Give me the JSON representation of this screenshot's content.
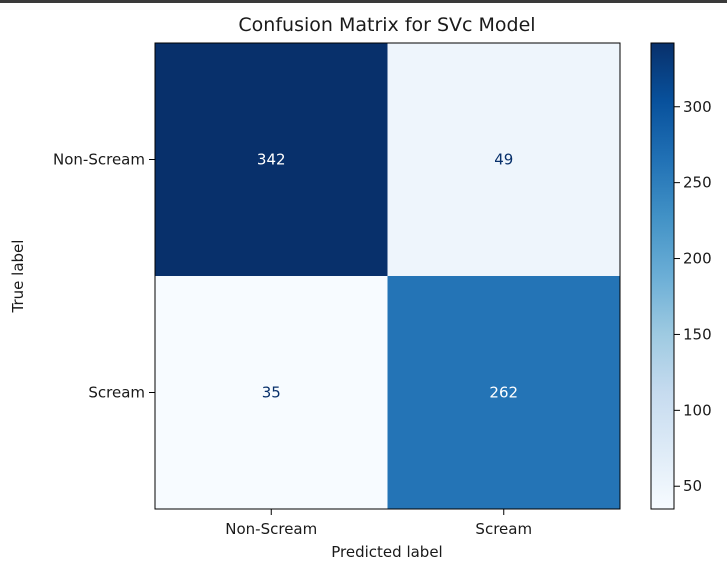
{
  "chart_data": {
    "type": "heatmap",
    "title": "Confusion Matrix for SVc Model",
    "xlabel": "Predicted label",
    "ylabel": "True label",
    "x_categories": [
      "Non-Scream",
      "Scream"
    ],
    "y_categories": [
      "Non-Scream",
      "Scream"
    ],
    "values": [
      [
        342,
        49
      ],
      [
        35,
        262
      ]
    ],
    "colormap": "Blues",
    "colorbar": {
      "range": [
        35,
        342
      ],
      "ticks": [
        50,
        100,
        150,
        200,
        250,
        300
      ]
    },
    "colors": {
      "cmap_stops": [
        "#f7fbff",
        "#deebf7",
        "#c6dbef",
        "#9ecae1",
        "#6baed6",
        "#4292c6",
        "#2171b5",
        "#08519c",
        "#08306b"
      ],
      "text_on_dark": "#ffffff",
      "text_on_light": "#08306b"
    }
  }
}
